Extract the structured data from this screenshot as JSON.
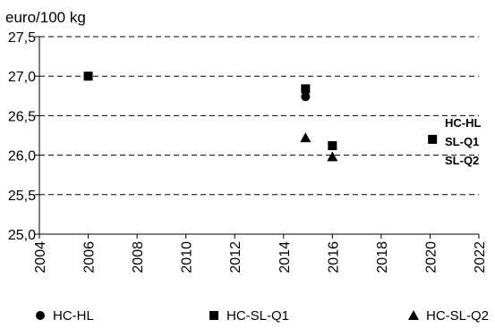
{
  "chart_data": {
    "type": "scatter",
    "title": "",
    "xlabel": "",
    "ylabel": "euro/100 kg",
    "xlim": [
      2004,
      2022
    ],
    "ylim": [
      25.0,
      27.5
    ],
    "x_ticks": [
      "2004",
      "2006",
      "2008",
      "2010",
      "2012",
      "2014",
      "2016",
      "2018",
      "2020",
      "2022"
    ],
    "y_ticks": [
      "25,0",
      "25,5",
      "26,0",
      "26,5",
      "27,0",
      "27,5"
    ],
    "grid": "horizontal dashed",
    "legend_position": "bottom",
    "series": [
      {
        "name": "HC-HL",
        "marker": "circle",
        "color": "#000000",
        "points": [
          {
            "x": 2006,
            "y": 27.0
          },
          {
            "x": 2014.9,
            "y": 26.74
          }
        ]
      },
      {
        "name": "HC-SL-Q1",
        "marker": "square",
        "color": "#000000",
        "points": [
          {
            "x": 2006,
            "y": 27.0
          },
          {
            "x": 2014.9,
            "y": 26.84
          },
          {
            "x": 2016,
            "y": 26.12
          },
          {
            "x": 2020.1,
            "y": 26.2
          }
        ]
      },
      {
        "name": "HC-SL-Q2",
        "marker": "triangle",
        "color": "#000000",
        "points": [
          {
            "x": 2014.9,
            "y": 26.22
          },
          {
            "x": 2016,
            "y": 25.98
          }
        ]
      }
    ],
    "side_labels": [
      "HC-HL",
      "SL-Q1",
      "SL-Q2"
    ]
  }
}
